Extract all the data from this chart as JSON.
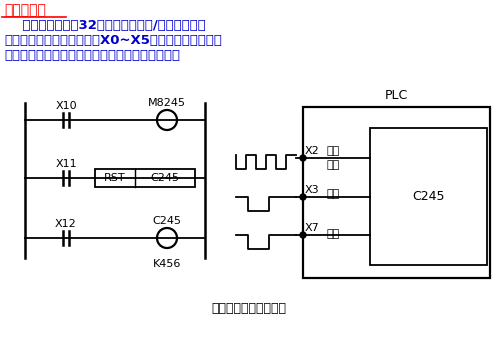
{
  "bg_color": "#ffffff",
  "title_text": "编程软元件",
  "title_color": "#ff0000",
  "body_text1": "    高速计数器也是32位停电保持型增/减计数器，但",
  "body_text2": "它们只对特定的输入端子（X0~X5）的脉冲进行计数。",
  "body_text3": "高速计数器采用终端方式处理，与扫描周期无关。",
  "caption": "单相单输入高速计数器",
  "body_color": "#0000cc",
  "line_color": "#000000",
  "font_size_title": 10,
  "font_size_body": 9.5,
  "font_size_small": 8,
  "font_size_caption": 9
}
